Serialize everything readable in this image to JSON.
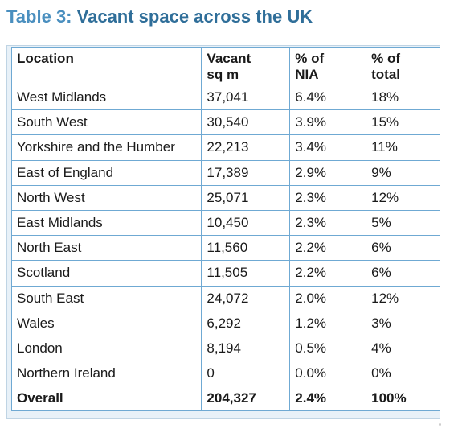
{
  "title": {
    "label": "Table 3:",
    "text": "Vacant space across the UK"
  },
  "columns": {
    "location": "Location",
    "vacant_line1": "Vacant",
    "vacant_line2": "sq m",
    "nia_line1": "% of",
    "nia_line2": "NIA",
    "total_line1": "% of",
    "total_line2": "total"
  },
  "rows": [
    {
      "location": "West Midlands",
      "vacant": "37,041",
      "nia": "6.4%",
      "total": "18%"
    },
    {
      "location": "South West",
      "vacant": "30,540",
      "nia": "3.9%",
      "total": "15%"
    },
    {
      "location": "Yorkshire and the Humber",
      "vacant": "22,213",
      "nia": "3.4%",
      "total": "11%"
    },
    {
      "location": "East of England",
      "vacant": "17,389",
      "nia": "2.9%",
      "total": "9%"
    },
    {
      "location": "North West",
      "vacant": "25,071",
      "nia": "2.3%",
      "total": "12%"
    },
    {
      "location": "East Midlands",
      "vacant": "10,450",
      "nia": "2.3%",
      "total": "5%"
    },
    {
      "location": "North East",
      "vacant": "11,560",
      "nia": "2.2%",
      "total": "6%"
    },
    {
      "location": "Scotland",
      "vacant": "11,505",
      "nia": "2.2%",
      "total": "6%"
    },
    {
      "location": "South East",
      "vacant": "24,072",
      "nia": "2.0%",
      "total": "12%"
    },
    {
      "location": "Wales",
      "vacant": "6,292",
      "nia": "1.2%",
      "total": "3%"
    },
    {
      "location": "London",
      "vacant": "8,194",
      "nia": "0.5%",
      "total": "4%"
    },
    {
      "location": "Northern Ireland",
      "vacant": "0",
      "nia": "0.0%",
      "total": "0%"
    }
  ],
  "overall": {
    "location": "Overall",
    "vacant": "204,327",
    "nia": "2.4%",
    "total": "100%"
  },
  "colors": {
    "title_label": "#4a8fbf",
    "title_text": "#2f6e99",
    "border": "#6fa9d3",
    "frame_background": "#e8f1f8"
  }
}
